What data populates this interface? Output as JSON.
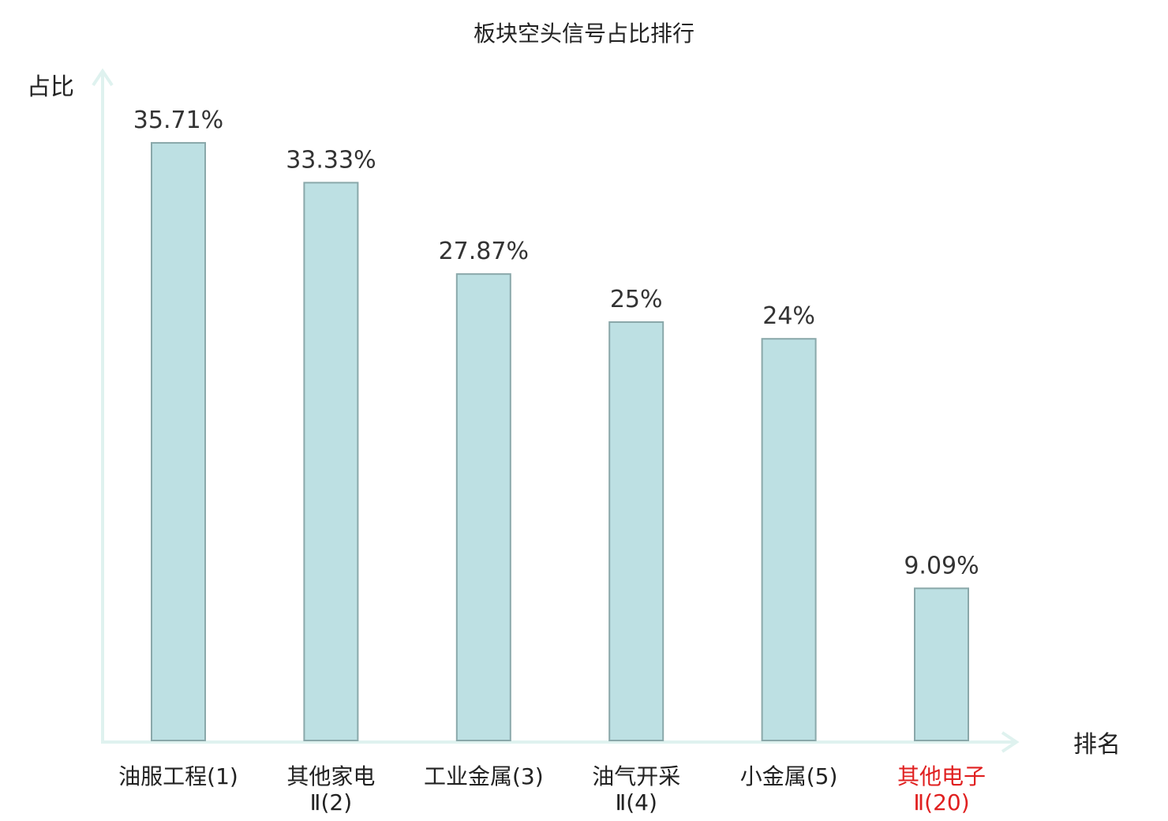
{
  "chart_data": {
    "type": "bar",
    "title": "板块空头信号占比排行",
    "ylabel": "占比",
    "xlabel": "排名",
    "categories": [
      [
        "油服工程(1)"
      ],
      [
        "其他家电",
        "Ⅱ(2)"
      ],
      [
        "工业金属(3)"
      ],
      [
        "油气开采",
        "Ⅱ(4)"
      ],
      [
        "小金属(5)"
      ],
      [
        "其他电子",
        "Ⅱ(20)"
      ]
    ],
    "values": [
      35.71,
      33.33,
      27.87,
      25,
      24,
      9.09
    ],
    "value_labels": [
      "35.71%",
      "33.33%",
      "27.87%",
      "25%",
      "24%",
      "9.09%"
    ],
    "highlight_index": 5,
    "ylim": [
      0,
      40
    ],
    "grid": false,
    "colors": {
      "bar_fill": "#bde0e3",
      "bar_stroke": "#8aa8aa",
      "axis": "#dff2ef",
      "highlight_text": "#e02020",
      "text": "#222222"
    }
  }
}
